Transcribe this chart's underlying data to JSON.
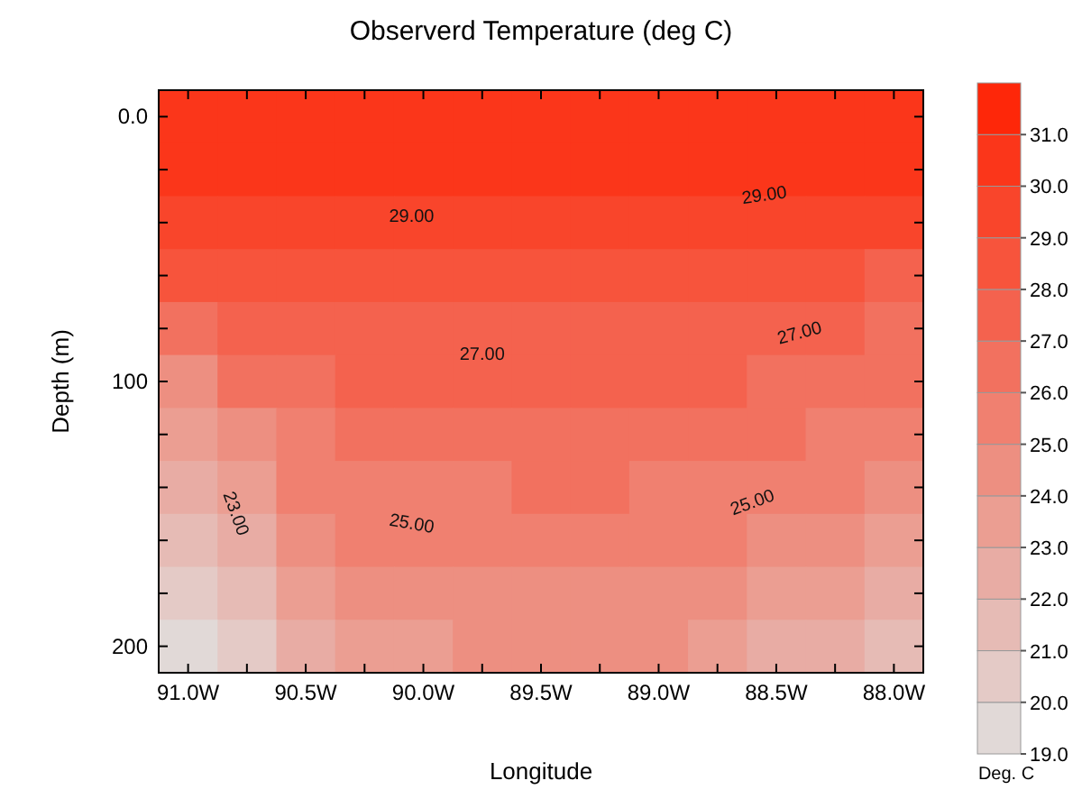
{
  "chart_data": {
    "type": "heatmap",
    "title": "Observerd Temperature (deg C)",
    "xlabel": "Longitude",
    "ylabel": "Depth (m)",
    "clabel": "Deg. C",
    "categories": [
      "91.0W",
      null,
      "90.5W",
      null,
      "90.0W",
      null,
      "89.5W",
      null,
      "89.0W",
      null,
      "88.5W",
      null,
      "88.0W"
    ],
    "y_categories": [
      "0.0",
      null,
      null,
      null,
      null,
      "100",
      null,
      null,
      null,
      null,
      "200"
    ],
    "cells": [
      [
        30.3,
        30.6,
        30.8,
        30.8,
        30.8,
        30.8,
        30.8,
        30.8,
        30.8,
        30.8,
        30.8,
        30.8,
        30.8
      ],
      [
        30.2,
        30.4,
        30.5,
        30.5,
        30.4,
        30.4,
        30.4,
        30.4,
        30.4,
        30.5,
        30.5,
        30.5,
        30.5
      ],
      [
        29.4,
        29.5,
        29.6,
        29.6,
        29.5,
        29.5,
        29.5,
        29.5,
        29.5,
        29.6,
        29.6,
        29.5,
        29.3
      ],
      [
        28.5,
        28.6,
        28.5,
        28.5,
        28.5,
        28.4,
        28.4,
        28.4,
        28.4,
        28.4,
        28.4,
        28.2,
        27.8
      ],
      [
        26.0,
        27.4,
        27.6,
        27.7,
        27.7,
        27.7,
        27.7,
        27.7,
        27.7,
        27.6,
        27.4,
        27.1,
        26.9
      ],
      [
        24.8,
        26.0,
        26.8,
        27.0,
        27.1,
        27.2,
        27.2,
        27.2,
        27.1,
        27.0,
        26.7,
        26.4,
        26.0
      ],
      [
        23.8,
        24.8,
        25.9,
        26.2,
        26.4,
        26.6,
        26.6,
        26.6,
        26.6,
        26.5,
        26.3,
        25.8,
        25.4
      ],
      [
        22.8,
        23.7,
        25.3,
        25.6,
        25.8,
        25.9,
        26.0,
        26.0,
        25.9,
        25.8,
        25.6,
        25.0,
        24.6
      ],
      [
        21.8,
        22.8,
        24.8,
        25.1,
        25.2,
        25.3,
        25.3,
        25.3,
        25.3,
        25.2,
        24.8,
        24.2,
        23.6
      ],
      [
        20.8,
        21.8,
        23.8,
        24.4,
        24.6,
        24.7,
        24.7,
        24.7,
        24.7,
        24.5,
        23.8,
        23.2,
        22.6
      ],
      [
        19.6,
        20.8,
        22.8,
        23.6,
        23.9,
        24.0,
        24.0,
        24.0,
        24.0,
        23.6,
        22.8,
        22.2,
        21.4
      ]
    ],
    "clim": [
      19,
      32
    ],
    "cticks": [
      {
        "value": 19,
        "label": "19.0"
      },
      {
        "value": 20,
        "label": "20.0"
      },
      {
        "value": 21,
        "label": "21.0"
      },
      {
        "value": 22,
        "label": "22.0"
      },
      {
        "value": 23,
        "label": "23.0"
      },
      {
        "value": 24,
        "label": "24.0"
      },
      {
        "value": 25,
        "label": "25.0"
      },
      {
        "value": 26,
        "label": "26.0"
      },
      {
        "value": 27,
        "label": "27.0"
      },
      {
        "value": 28,
        "label": "28.0"
      },
      {
        "value": 29,
        "label": "29.0"
      },
      {
        "value": 30,
        "label": "30.0"
      },
      {
        "value": 31,
        "label": "31.0"
      }
    ],
    "annotations": [
      "29.00",
      "29.00",
      "27.00",
      "27.00",
      "23.00",
      "25.00",
      "25.00"
    ]
  }
}
